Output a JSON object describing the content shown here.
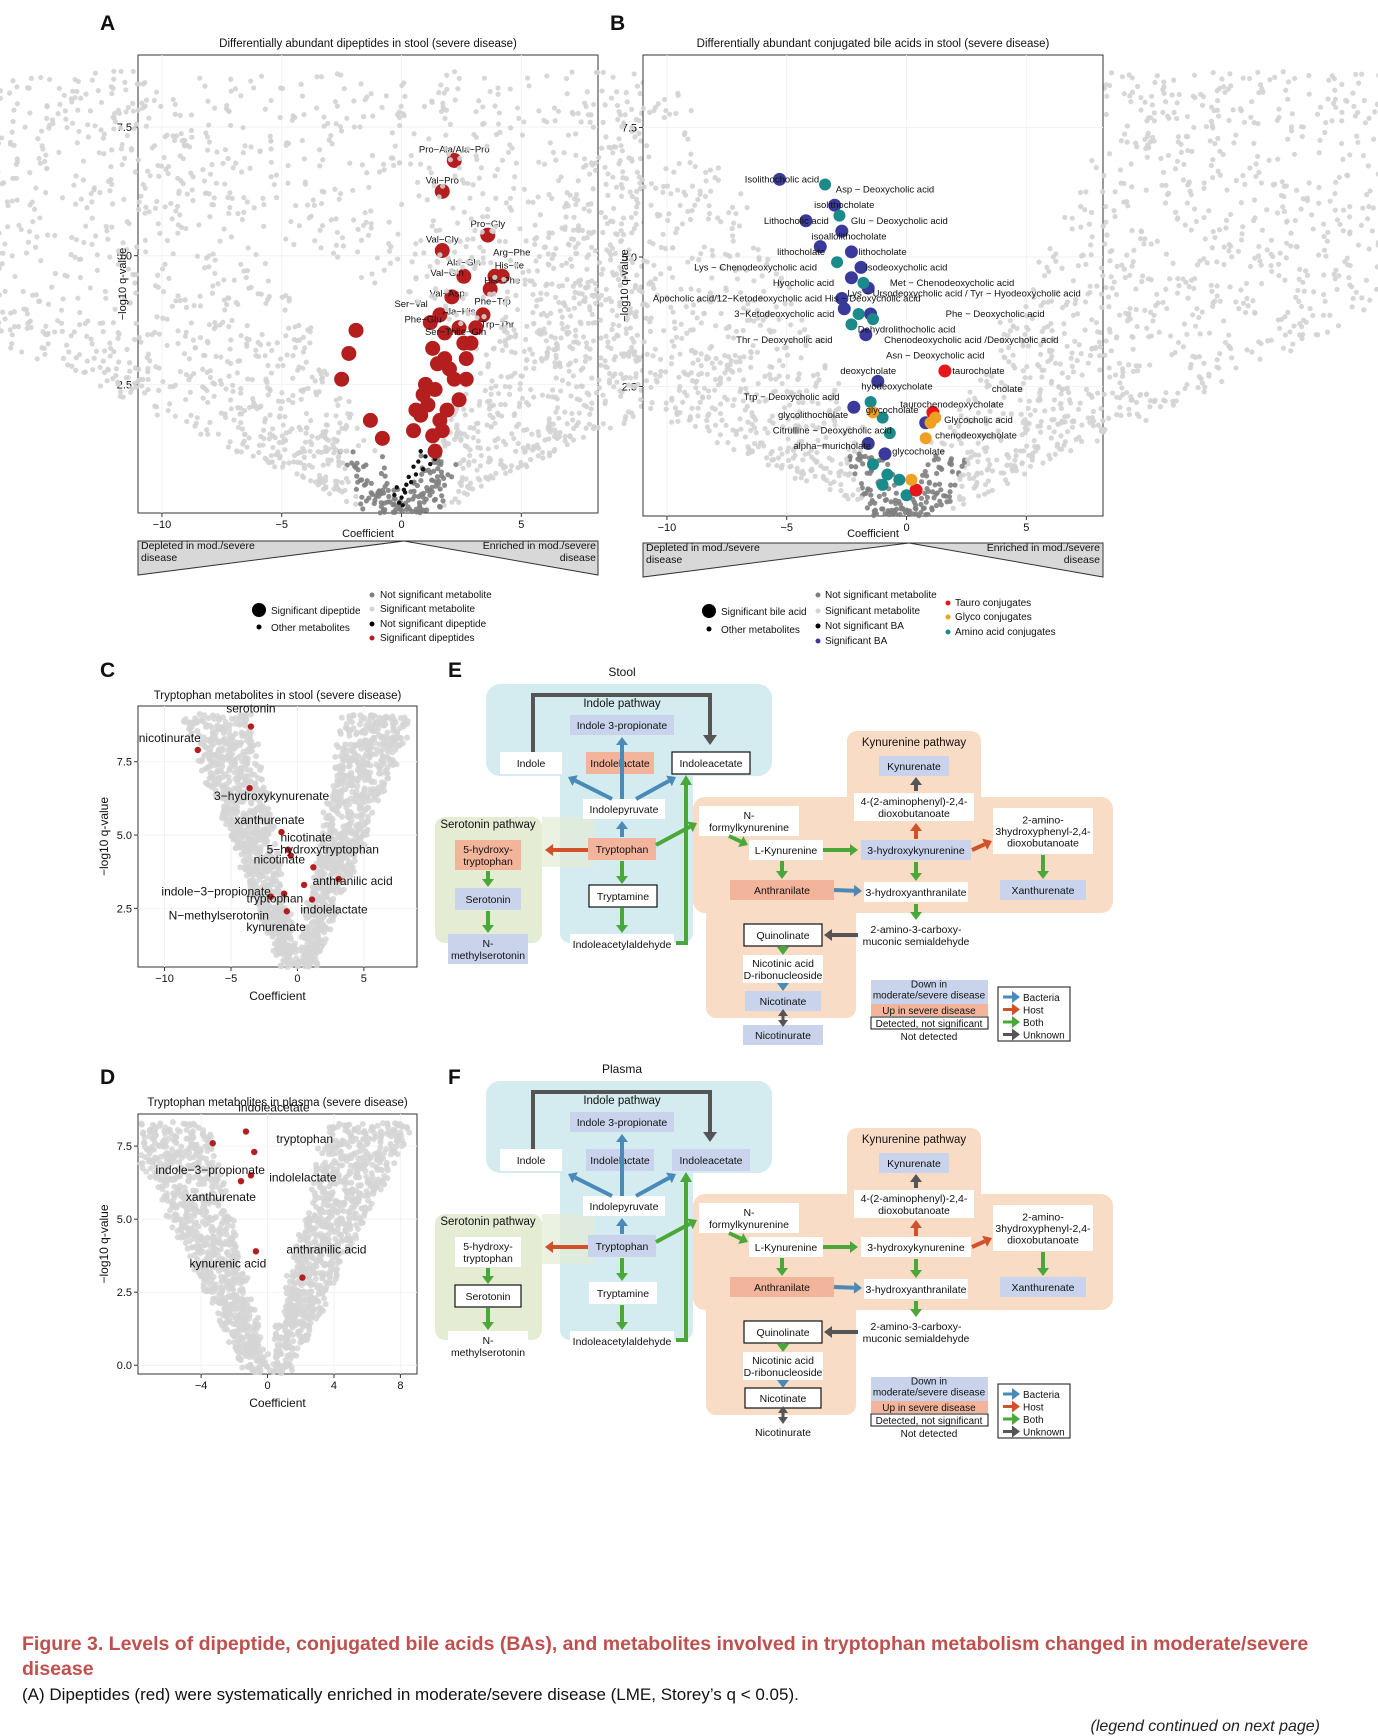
{
  "caption": {
    "title": "Figure 3.  Levels of dipeptide, conjugated bile acids (BAs), and metabolites involved in tryptophan metabolism changed in moderate/severe disease",
    "body": "(A) Dipeptides (red) were systematically enriched in moderate/severe disease (LME, Storey’s q < 0.05).",
    "continued": "(legend continued on next page)"
  },
  "colors": {
    "sig_gray": "#d3d3d3",
    "nonsig_gray": "#7f7f7f",
    "red": "#b41e1e",
    "navy": "#3a3a9a",
    "teal": "#1a8a8a",
    "bright_red": "#e8151a",
    "orange": "#f0a020"
  },
  "panel_a": {
    "letter": "A",
    "chart_data": {
      "type": "scatter",
      "title": "Differentially abundant dipeptides in stool (severe disease)",
      "xlabel": "Coefficient",
      "ylabel": "−log10 q-value",
      "xlim": [
        -11,
        8.2
      ],
      "ylim": [
        0,
        8.9
      ],
      "x_ticks": [
        "−10",
        "−5",
        "0",
        "5"
      ],
      "x_tick_values": [
        -10,
        -5,
        0,
        5
      ],
      "y_ticks": [
        "2.5",
        "5.0",
        "7.5"
      ],
      "y_tick_values": [
        2.5,
        5.0,
        7.5
      ],
      "highlight_labels": [
        {
          "text": "Pro−Ala/Ala−Pro",
          "x": 2.2,
          "y": 6.85
        },
        {
          "text": "Val−Pro",
          "x": 1.7,
          "y": 6.25
        },
        {
          "text": "Pro−Gly",
          "x": 3.6,
          "y": 5.4
        },
        {
          "text": "Val−Gly",
          "x": 1.7,
          "y": 5.1
        },
        {
          "text": "Arg−Phe",
          "x": 4.6,
          "y": 4.85
        },
        {
          "text": "Ala−Gln",
          "x": 2.6,
          "y": 4.65
        },
        {
          "text": "His−Ile",
          "x": 4.5,
          "y": 4.6
        },
        {
          "text": "Val−Gln",
          "x": 1.9,
          "y": 4.45
        },
        {
          "text": "His−Phe",
          "x": 4.2,
          "y": 4.3
        },
        {
          "text": "Val−Asp",
          "x": 1.9,
          "y": 4.05
        },
        {
          "text": "Phe−Trp",
          "x": 3.8,
          "y": 3.9
        },
        {
          "text": "Ser−Val",
          "x": 0.4,
          "y": 3.85
        },
        {
          "text": "Ala−His",
          "x": 2.4,
          "y": 3.7
        },
        {
          "text": "Trp−Thr",
          "x": 4.0,
          "y": 3.45
        },
        {
          "text": "Phe−Glu",
          "x": 0.9,
          "y": 3.55
        },
        {
          "text": "Ser−Thr",
          "x": 1.7,
          "y": 3.3
        },
        {
          "text": "Ile−Gln",
          "x": 2.9,
          "y": 3.3
        }
      ],
      "sig_points": [
        [
          2.2,
          6.85
        ],
        [
          1.7,
          6.25
        ],
        [
          3.6,
          5.4
        ],
        [
          1.7,
          5.1
        ],
        [
          3.9,
          4.6
        ],
        [
          4.2,
          4.6
        ],
        [
          2.6,
          4.6
        ],
        [
          3.7,
          4.35
        ],
        [
          2.1,
          4.2
        ],
        [
          3.4,
          3.85
        ],
        [
          1.6,
          3.85
        ],
        [
          -1.9,
          3.55
        ],
        [
          -2.2,
          3.1
        ],
        [
          -2.5,
          2.6
        ],
        [
          1.2,
          3.7
        ],
        [
          2.4,
          3.6
        ],
        [
          2.9,
          3.3
        ],
        [
          2.6,
          3.3
        ],
        [
          1.3,
          3.2
        ],
        [
          1.8,
          3.0
        ],
        [
          2.0,
          2.8
        ],
        [
          2.7,
          2.6
        ],
        [
          1.0,
          2.5
        ],
        [
          1.4,
          2.4
        ],
        [
          2.4,
          2.2
        ],
        [
          1.1,
          2.1
        ],
        [
          0.8,
          1.9
        ],
        [
          1.6,
          1.8
        ],
        [
          0.5,
          1.6
        ],
        [
          1.3,
          1.5
        ],
        [
          -1.3,
          1.8
        ],
        [
          -0.8,
          1.45
        ],
        [
          1.9,
          2.0
        ],
        [
          1.5,
          2.9
        ],
        [
          0.9,
          2.3
        ],
        [
          1.4,
          1.2
        ],
        [
          1.7,
          1.6
        ],
        [
          2.2,
          2.6
        ],
        [
          0.6,
          2.0
        ],
        [
          1.8,
          3.5
        ],
        [
          3.1,
          3.6
        ],
        [
          2.7,
          3.0
        ]
      ],
      "other_points": [
        [
          0.2,
          0.55
        ],
        [
          0.0,
          0.3
        ],
        [
          0.1,
          0.45
        ],
        [
          0.3,
          0.7
        ],
        [
          -0.2,
          0.5
        ],
        [
          0.5,
          0.9
        ],
        [
          0.7,
          1.0
        ],
        [
          1.0,
          1.1
        ],
        [
          1.2,
          0.95
        ],
        [
          0.9,
          0.85
        ],
        [
          0.4,
          0.6
        ],
        [
          0.6,
          0.75
        ],
        [
          -0.1,
          0.2
        ],
        [
          0.15,
          0.4
        ],
        [
          0.8,
          1.2
        ],
        [
          1.4,
          1.05
        ],
        [
          -0.3,
          0.35
        ],
        [
          0.05,
          0.15
        ]
      ]
    },
    "legend": {
      "sig_dipeptide": "Significant dipeptide",
      "other_metabolites": "Other metabolites",
      "not_sig_metabolite": "Not significant metabolite",
      "sig_metabolite": "Significant metabolite",
      "not_sig_dipeptide": "Not significant dipeptide",
      "sig_dipeptides": "Significant dipeptides"
    },
    "bar": {
      "left": "Depleted in mod./severe\ndisease",
      "right": "Enriched in mod./severe\ndisease"
    }
  },
  "panel_b": {
    "letter": "B",
    "chart_data": {
      "type": "scatter",
      "title": "Differentially abundant conjugated bile acids in stool (severe disease)",
      "xlabel": "Coefficient",
      "ylabel": "−log10 q-value",
      "xlim": [
        -11,
        8.2
      ],
      "ylim": [
        0,
        8.9
      ],
      "x_ticks": [
        "−10",
        "−5",
        "0",
        "5"
      ],
      "x_tick_values": [
        -10,
        -5,
        0,
        5
      ],
      "y_ticks": [
        "2.5",
        "5.0",
        "7.5"
      ],
      "y_tick_values": [
        2.5,
        5.0,
        7.5
      ],
      "labels": [
        {
          "text": "Isolithocholic acid",
          "x": -5.2,
          "y": 6.5
        },
        {
          "text": "Asp − Deoxycholic acid",
          "x": -0.9,
          "y": 6.3
        },
        {
          "text": "isolithocholate",
          "x": -2.6,
          "y": 6.0
        },
        {
          "text": "Lithocholic acid",
          "x": -4.6,
          "y": 5.7
        },
        {
          "text": "Glu − Deoxycholic acid",
          "x": -0.3,
          "y": 5.7
        },
        {
          "text": "isoallolithocholate",
          "x": -2.4,
          "y": 5.4
        },
        {
          "text": "lithocholate",
          "x": -4.4,
          "y": 5.1
        },
        {
          "text": "lithocholate",
          "x": -1.0,
          "y": 5.1
        },
        {
          "text": "Lys − Chenodeoxycholic acid",
          "x": -6.3,
          "y": 4.8
        },
        {
          "text": "isodeoxycholic acid",
          "x": 0.0,
          "y": 4.8
        },
        {
          "text": "Hyocholic acid",
          "x": -4.3,
          "y": 4.5
        },
        {
          "text": "Met − Chenodeoxycholic acid",
          "x": 1.9,
          "y": 4.5
        },
        {
          "text": "Apocholic acid/12−Ketodeoxycholic acid His − Deoxycholic acid",
          "x": -5.0,
          "y": 4.2
        },
        {
          "text": "Lys − Ursodeoxycholic acid / Tyr − Hyodeoxycholic acid",
          "x": 2.4,
          "y": 4.3
        },
        {
          "text": "3−Ketodeoxycholic acid",
          "x": -5.1,
          "y": 3.9
        },
        {
          "text": "Phe − Deoxycholic acid",
          "x": 3.7,
          "y": 3.9
        },
        {
          "text": "Dehydrolithocholic acid",
          "x": 0.0,
          "y": 3.6
        },
        {
          "text": "Thr − Deoxycholic acid",
          "x": -5.1,
          "y": 3.4
        },
        {
          "text": "Chenodeoxycholic acid /Deoxycholic acid",
          "x": 2.7,
          "y": 3.4
        },
        {
          "text": "Asn − Deoxycholic acid",
          "x": 1.2,
          "y": 3.1
        },
        {
          "text": "deoxycholate",
          "x": -1.6,
          "y": 2.8
        },
        {
          "text": "taurocholate",
          "x": 3.0,
          "y": 2.8
        },
        {
          "text": "hyodeoxycholate",
          "x": -0.4,
          "y": 2.5
        },
        {
          "text": "cholate",
          "x": 4.2,
          "y": 2.45
        },
        {
          "text": "Trp − Deoxycholic acid",
          "x": -4.8,
          "y": 2.3
        },
        {
          "text": "glycocholate",
          "x": -0.6,
          "y": 2.05
        },
        {
          "text": "taurochenodeoxycholate",
          "x": 1.9,
          "y": 2.15
        },
        {
          "text": "glycolithocholate",
          "x": -3.9,
          "y": 1.95
        },
        {
          "text": "Glycocholic acid",
          "x": 3.0,
          "y": 1.85
        },
        {
          "text": "Citrulline − Deoxycholic acid",
          "x": -3.1,
          "y": 1.65
        },
        {
          "text": "chenodeoxycholate",
          "x": 2.9,
          "y": 1.55
        },
        {
          "text": "alpha−muricholate",
          "x": -3.1,
          "y": 1.35
        },
        {
          "text": "glycocholate",
          "x": 0.5,
          "y": 1.25
        }
      ],
      "navy_points": [
        [
          -5.3,
          6.5
        ],
        [
          -3.0,
          6.0
        ],
        [
          -4.2,
          5.7
        ],
        [
          -2.7,
          5.5
        ],
        [
          -3.6,
          5.2
        ],
        [
          -2.3,
          5.1
        ],
        [
          -1.9,
          4.8
        ],
        [
          -2.3,
          4.6
        ],
        [
          -1.6,
          4.4
        ],
        [
          -2.7,
          4.2
        ],
        [
          -2.6,
          4.0
        ],
        [
          -1.5,
          3.9
        ],
        [
          -1.7,
          3.5
        ],
        [
          -1.2,
          2.6
        ],
        [
          -2.2,
          2.1
        ],
        [
          0.8,
          1.8
        ],
        [
          -0.9,
          1.2
        ],
        [
          -1.6,
          1.4
        ]
      ],
      "teal_points": [
        [
          -3.4,
          6.4
        ],
        [
          -2.8,
          5.8
        ],
        [
          -2.9,
          4.9
        ],
        [
          -1.8,
          4.5
        ],
        [
          -2.3,
          3.7
        ],
        [
          -2.0,
          3.9
        ],
        [
          -1.4,
          3.8
        ],
        [
          -1.5,
          2.2
        ],
        [
          -1.0,
          1.9
        ],
        [
          -0.7,
          1.6
        ],
        [
          -1.4,
          1.0
        ],
        [
          -0.8,
          0.8
        ],
        [
          -1.0,
          0.6
        ],
        [
          0.0,
          0.4
        ],
        [
          -0.3,
          0.7
        ]
      ],
      "bright_red_points": [
        [
          1.6,
          2.8
        ],
        [
          1.1,
          2.0
        ],
        [
          0.4,
          0.5
        ]
      ],
      "orange_points": [
        [
          -1.4,
          2.0
        ],
        [
          1.0,
          1.8
        ],
        [
          0.8,
          1.5
        ],
        [
          1.2,
          1.9
        ],
        [
          0.2,
          0.7
        ]
      ]
    },
    "legend": {
      "sig_bile_acid": "Significant bile acid",
      "other_metabolites": "Other metabolites",
      "not_sig_metabolite": "Not significant metabolite",
      "sig_metabolite": "Significant metabolite",
      "not_sig_ba": "Not significant BA",
      "sig_ba": "Significant BA",
      "tauro": "Tauro conjugates",
      "glyco": "Glyco conjugates",
      "amino": "Amino acid conjugates"
    },
    "bar": {
      "left": "Depleted in mod./severe\ndisease",
      "right": "Enriched in mod./severe\ndisease"
    }
  },
  "panel_c": {
    "letter": "C",
    "chart_data": {
      "type": "scatter",
      "title": "Tryptophan metabolites in stool (severe disease)",
      "xlabel": "Coefficient",
      "ylabel": "−log10 q-value",
      "xlim": [
        -12,
        9
      ],
      "ylim": [
        0.5,
        9.4
      ],
      "x_ticks": [
        "−10",
        "−5",
        "0",
        "5"
      ],
      "x_tick_values": [
        -10,
        -5,
        0,
        5
      ],
      "y_ticks": [
        "2.5",
        "5.0",
        "7.5"
      ],
      "y_tick_values": [
        2.5,
        5.0,
        7.5
      ],
      "points": [
        {
          "label": "serotonin",
          "x": -3.5,
          "y": 8.7
        },
        {
          "label": "nicotinurate",
          "x": -7.5,
          "y": 7.9
        },
        {
          "label": "3−hydroxykynurenate",
          "x": -3.6,
          "y": 6.6
        },
        {
          "label": "xanthurenate",
          "x": -1.2,
          "y": 5.1
        },
        {
          "label": "nicotinate",
          "x": -0.7,
          "y": 4.5
        },
        {
          "label": "5−hydroxytryptophan",
          "x": -0.5,
          "y": 4.3
        },
        {
          "label": "nicotinate",
          "x": 1.2,
          "y": 3.9
        },
        {
          "label": "indole−3−propionate",
          "x": -1.0,
          "y": 3.0
        },
        {
          "label": "tryptophan",
          "x": -2.0,
          "y": 2.9
        },
        {
          "label": "anthranilic acid",
          "x": 3.1,
          "y": 3.5
        },
        {
          "label": "N−methylserotonin",
          "x": -0.8,
          "y": 2.4
        },
        {
          "label": "indolelactate",
          "x": 1.1,
          "y": 2.8
        },
        {
          "label": "kynurenate",
          "x": 0.5,
          "y": 3.3
        }
      ]
    }
  },
  "panel_d": {
    "letter": "D",
    "chart_data": {
      "type": "scatter",
      "title": "Tryptophan metabolites in plasma (severe disease)",
      "xlabel": "Coefficient",
      "ylabel": "−log10 q-value",
      "xlim": [
        -7.8,
        9
      ],
      "ylim": [
        -0.3,
        8.6
      ],
      "x_ticks": [
        "−4",
        "0",
        "4",
        "8"
      ],
      "x_tick_values": [
        -4,
        0,
        4,
        8
      ],
      "y_ticks": [
        "0.0",
        "2.5",
        "5.0",
        "7.5"
      ],
      "y_tick_values": [
        0,
        2.5,
        5.0,
        7.5
      ],
      "points": [
        {
          "label": "indoleacetate",
          "x": -1.3,
          "y": 8.0
        },
        {
          "label": "tryptophan",
          "x": -3.3,
          "y": 7.6
        },
        {
          "label": "indole−3−propionate",
          "x": -0.8,
          "y": 7.3
        },
        {
          "label": "indolelactate",
          "x": -1.0,
          "y": 6.5
        },
        {
          "label": "xanthurenate",
          "x": -1.6,
          "y": 6.3
        },
        {
          "label": "kynurenic acid",
          "x": -0.7,
          "y": 3.9
        },
        {
          "label": "anthranilic acid",
          "x": 2.1,
          "y": 3.0
        }
      ]
    }
  },
  "pathway": {
    "stool_title": "Stool",
    "plasma_title": "Plasma",
    "letter_e": "E",
    "letter_f": "F",
    "indole_pathway": "Indole pathway",
    "serotonin_pathway": "Serotonin pathway",
    "kynurenine_pathway": "Kynurenine pathway",
    "nodes": {
      "indole": "Indole",
      "indole3prop": "Indole 3-propionate",
      "indolelactate": "Indolelactate",
      "indoleacetate": "Indoleacetate",
      "indolepyruvate": "Indolepyruvate",
      "tryptophan": "Tryptophan",
      "tryptamine": "Tryptamine",
      "indoleacetylaldehyde": "Indoleacetylaldehyde",
      "hydroxytryptophan": "5-hydroxy-\ntryptophan",
      "serotonin": "Serotonin",
      "methylserotonin": "N-\nmethylserotonin",
      "formylkynurenine": "N-\nformylkynurenine",
      "lkynurenine": "L-Kynurenine",
      "hydroxykynurenine": "3-hydroxykynurenine",
      "kynurenate": "Kynurenate",
      "aminophenyl": "4-(2-aminophenyl)-2,4-\ndioxobutanoate",
      "aminohydroxy": "2-amino-\n3hydroxyphenyl-2,4-\ndioxobutanoate",
      "xanthurenate": "Xanthurenate",
      "anthranilate": "Anthranilate",
      "hydroxyanthranilate": "3-hydroxyanthranilate",
      "carboxymuconic": "2-amino-3-carboxy-\nmuconic semialdehyde",
      "quinolinate": "Quinolinate",
      "nicotinicacid": "Nicotinic acid\nD-ribonucleoside",
      "nicotinate": "Nicotinate",
      "nicotinurate": "Nicotinurate"
    },
    "legend": {
      "down": "Down in\nmoderate/severe disease",
      "up": "Up in severe disease",
      "detected": "Detected, not significant",
      "not_detected": "Not detected",
      "bacteria": "Bacteria",
      "host": "Host",
      "both": "Both",
      "unknown": "Unknown"
    },
    "colors": {
      "indole_bg": "#d4ebf0",
      "serotonin_bg": "#e4ecd4",
      "kyn_bg": "#f9dcc6",
      "down": "#c9d4ec",
      "up": "#f3b49c",
      "arrow_bacteria": "#4a8ab8",
      "arrow_host": "#d0522a",
      "arrow_both": "#4aa83a",
      "arrow_unknown": "#555555"
    },
    "stool_status": {
      "indole": "nd",
      "indole3prop": "down",
      "indolelactate": "up",
      "indoleacetate": "det",
      "indolepyruvate": "nd",
      "tryptophan": "up",
      "tryptamine": "det",
      "indoleacetylaldehyde": "nd",
      "hydroxytryptophan": "up",
      "serotonin": "down",
      "methylserotonin": "down",
      "formylkynurenine": "nd",
      "lkynurenine": "nd",
      "hydroxykynurenine": "down",
      "kynurenate": "down",
      "aminophenyl": "nd",
      "aminohydroxy": "nd",
      "xanthurenate": "down",
      "anthranilate": "up",
      "hydroxyanthranilate": "nd",
      "carboxymuconic": "nd",
      "quinolinate": "det",
      "nicotinicacid": "nd",
      "nicotinate": "down",
      "nicotinurate": "down"
    },
    "plasma_status": {
      "indole": "nd",
      "indole3prop": "down",
      "indolelactate": "down",
      "indoleacetate": "down",
      "indolepyruvate": "nd",
      "tryptophan": "down",
      "tryptamine": "nd",
      "indoleacetylaldehyde": "nd",
      "hydroxytryptophan": "nd",
      "serotonin": "det",
      "methylserotonin": "nd",
      "formylkynurenine": "nd",
      "lkynurenine": "nd",
      "hydroxykynurenine": "nd",
      "kynurenate": "down",
      "aminophenyl": "nd",
      "aminohydroxy": "nd",
      "xanthurenate": "down",
      "anthranilate": "up",
      "hydroxyanthranilate": "nd",
      "carboxymuconic": "nd",
      "quinolinate": "det",
      "nicotinicacid": "nd",
      "nicotinate": "det",
      "nicotinurate": "nd"
    }
  }
}
